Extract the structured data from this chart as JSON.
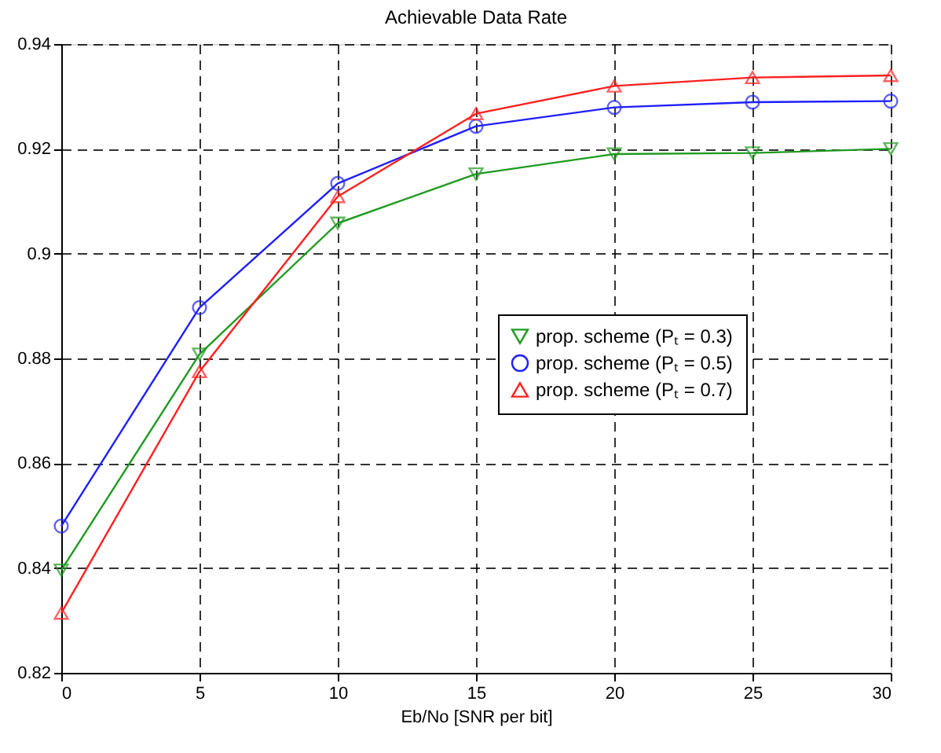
{
  "chart_data": {
    "type": "line",
    "title": "Achievable Data Rate",
    "xlabel": "Eb/No [SNR per bit]",
    "x": [
      0,
      5,
      10,
      15,
      20,
      25,
      30
    ],
    "series": [
      {
        "name": "prop. scheme (Pₜ = 0.3)",
        "color": "#1f9a1f",
        "marker": "triangle-down",
        "values": [
          0.8396,
          0.8808,
          0.9058,
          0.9152,
          0.919,
          0.9192,
          0.92
        ]
      },
      {
        "name": "prop. scheme (Pₜ = 0.5)",
        "color": "#1f1fff",
        "marker": "circle",
        "values": [
          0.848,
          0.8897,
          0.9134,
          0.9243,
          0.9279,
          0.9289,
          0.9291
        ]
      },
      {
        "name": "prop. scheme (Pₜ = 0.7)",
        "color": "#ff2020",
        "marker": "triangle-up",
        "values": [
          0.8314,
          0.8775,
          0.9109,
          0.9267,
          0.932,
          0.9336,
          0.934
        ]
      }
    ],
    "xlim": [
      0,
      30
    ],
    "xticks": [
      0,
      5,
      10,
      15,
      20,
      25,
      30
    ],
    "ylim": [
      0.82,
      0.94
    ],
    "yticks": [
      0.82,
      0.84,
      0.86,
      0.88,
      0.9,
      0.92,
      0.94
    ],
    "grid": true,
    "legend": "right",
    "line_style": "solid"
  }
}
